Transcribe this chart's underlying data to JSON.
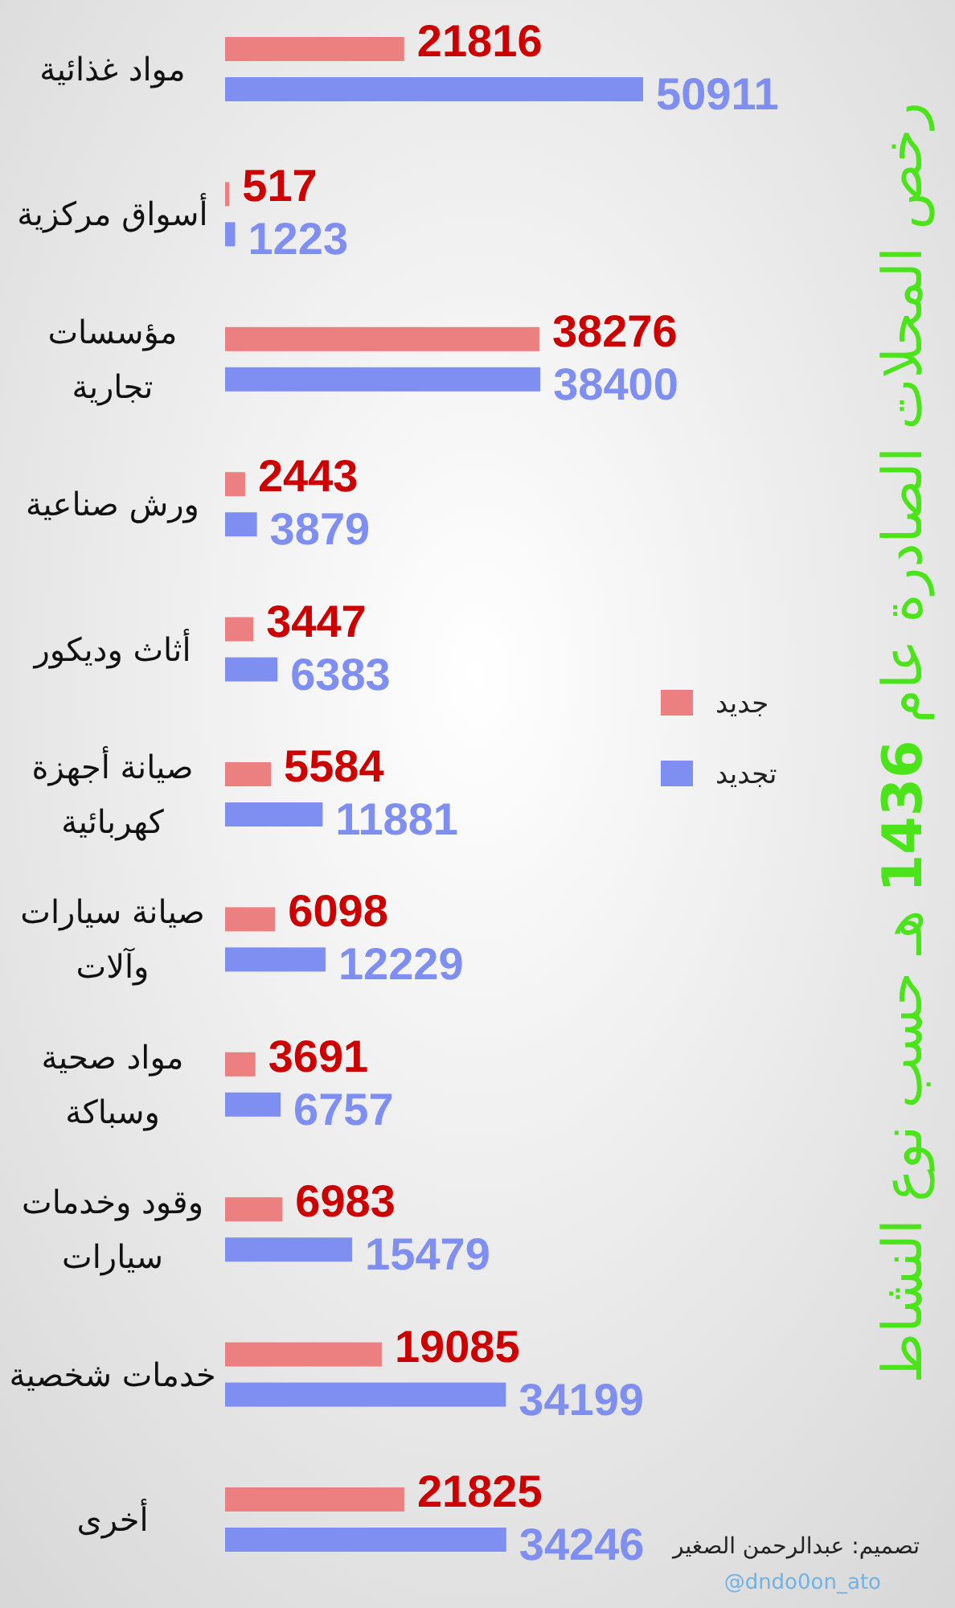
{
  "chart_data": {
    "type": "bar",
    "orientation": "horizontal",
    "title": "رخص المحلات الصادرة عام 1436 هـ حسب نوع النشاط",
    "categories": [
      "مواد غذائية",
      "أسواق مركزية",
      "مؤسسات تجارية",
      "ورش صناعية",
      "أثاث وديكور",
      "صيانة أجهزة كهربائية",
      "صيانة سيارات وآلات",
      "مواد صحية وسباكة",
      "وقود وخدمات سيارات",
      "خدمات شخصية",
      "أخرى"
    ],
    "series": [
      {
        "name": "جديد",
        "color": "#ec8080",
        "values": [
          21816,
          517,
          38276,
          2443,
          3447,
          5584,
          6098,
          3691,
          6983,
          19085,
          21825
        ]
      },
      {
        "name": "تجديد",
        "color": "#7e8ef1",
        "values": [
          50911,
          1223,
          38400,
          3879,
          6383,
          11881,
          12229,
          6757,
          15479,
          34199,
          34246
        ]
      }
    ],
    "data_labels": true,
    "legend": "right",
    "annotations": [
      "تصميم: عبدالرحمن الصغير",
      "@dndo0on_ato"
    ]
  }
}
